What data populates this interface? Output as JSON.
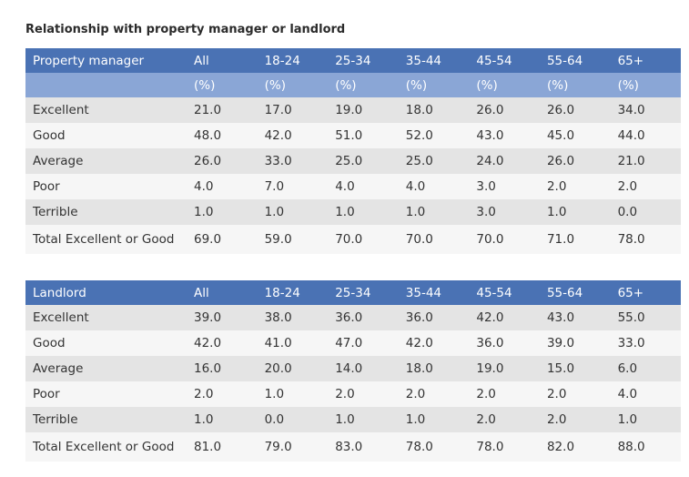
{
  "title": "Relationship with property manager or landlord",
  "columns": [
    "All",
    "18-24",
    "25-34",
    "35-44",
    "45-54",
    "55-64",
    "65+"
  ],
  "pct_label": "(%)",
  "table1": {
    "header": "Property manager",
    "rows": [
      {
        "label": "Excellent",
        "values": [
          "21.0",
          "17.0",
          "19.0",
          "18.0",
          "26.0",
          "26.0",
          "34.0"
        ]
      },
      {
        "label": "Good",
        "values": [
          "48.0",
          "42.0",
          "51.0",
          "52.0",
          "43.0",
          "45.0",
          "44.0"
        ]
      },
      {
        "label": "Average",
        "values": [
          "26.0",
          "33.0",
          "25.0",
          "25.0",
          "24.0",
          "26.0",
          "21.0"
        ]
      },
      {
        "label": "Poor",
        "values": [
          "4.0",
          "7.0",
          "4.0",
          "4.0",
          "3.0",
          "2.0",
          "2.0"
        ]
      },
      {
        "label": "Terrible",
        "values": [
          "1.0",
          "1.0",
          "1.0",
          "1.0",
          "3.0",
          "1.0",
          "0.0"
        ]
      },
      {
        "label": "Total Excellent or Good",
        "values": [
          "69.0",
          "59.0",
          "70.0",
          "70.0",
          "70.0",
          "71.0",
          "78.0"
        ]
      }
    ]
  },
  "table2": {
    "header": "Landlord",
    "rows": [
      {
        "label": "Excellent",
        "values": [
          "39.0",
          "38.0",
          "36.0",
          "36.0",
          "42.0",
          "43.0",
          "55.0"
        ]
      },
      {
        "label": "Good",
        "values": [
          "42.0",
          "41.0",
          "47.0",
          "42.0",
          "36.0",
          "39.0",
          "33.0"
        ]
      },
      {
        "label": "Average",
        "values": [
          "16.0",
          "20.0",
          "14.0",
          "18.0",
          "19.0",
          "15.0",
          "6.0"
        ]
      },
      {
        "label": "Poor",
        "values": [
          "2.0",
          "1.0",
          "2.0",
          "2.0",
          "2.0",
          "2.0",
          "4.0"
        ]
      },
      {
        "label": "Terrible",
        "values": [
          "1.0",
          "0.0",
          "1.0",
          "1.0",
          "2.0",
          "2.0",
          "1.0"
        ]
      },
      {
        "label": "Total Excellent or Good",
        "values": [
          "81.0",
          "79.0",
          "83.0",
          "78.0",
          "78.0",
          "82.0",
          "88.0"
        ]
      }
    ]
  }
}
